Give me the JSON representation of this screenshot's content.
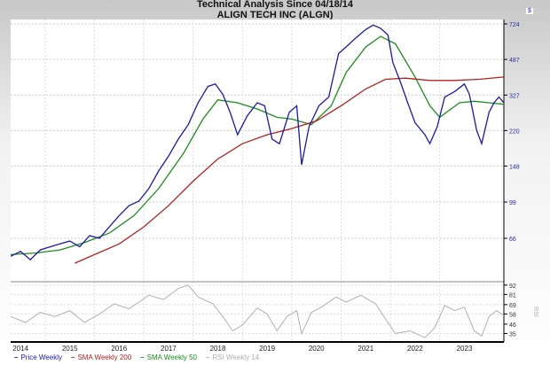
{
  "title": "Technical Analysis Since 04/18/14",
  "subtitle": "ALIGN TECH INC (ALGN)",
  "currency_label": "$",
  "chart_data": {
    "type": "line",
    "x_unit": "year",
    "xlim": [
      2014.3,
      2024.3
    ],
    "x_tick_labels": [
      "2014",
      "2015",
      "2016",
      "2017",
      "2018",
      "2019",
      "2020",
      "2021",
      "2022",
      "2023"
    ],
    "price_axis": {
      "scale": "log",
      "ticks": [
        724,
        487,
        327,
        220,
        148,
        99,
        66
      ]
    },
    "rsi_axis": {
      "label": "RSI",
      "ticks": [
        92,
        81,
        69,
        58,
        46,
        35
      ],
      "ylim": [
        25,
        96
      ]
    },
    "grid": true,
    "legend_position": "bottom",
    "series": [
      {
        "name": "Price Weekly",
        "color": "#1a1aa6",
        "panel": "price",
        "points": [
          [
            2014.3,
            54
          ],
          [
            2014.5,
            57
          ],
          [
            2014.7,
            52
          ],
          [
            2014.9,
            58
          ],
          [
            2015.1,
            60
          ],
          [
            2015.3,
            62
          ],
          [
            2015.5,
            64
          ],
          [
            2015.7,
            60
          ],
          [
            2015.9,
            68
          ],
          [
            2016.1,
            66
          ],
          [
            2016.3,
            75
          ],
          [
            2016.5,
            85
          ],
          [
            2016.7,
            95
          ],
          [
            2016.9,
            100
          ],
          [
            2017.1,
            115
          ],
          [
            2017.3,
            140
          ],
          [
            2017.5,
            165
          ],
          [
            2017.7,
            200
          ],
          [
            2017.9,
            235
          ],
          [
            2018.1,
            300
          ],
          [
            2018.3,
            360
          ],
          [
            2018.45,
            370
          ],
          [
            2018.6,
            330
          ],
          [
            2018.75,
            270
          ],
          [
            2018.9,
            210
          ],
          [
            2019.1,
            260
          ],
          [
            2019.3,
            300
          ],
          [
            2019.45,
            290
          ],
          [
            2019.6,
            200
          ],
          [
            2019.75,
            190
          ],
          [
            2019.95,
            270
          ],
          [
            2020.1,
            290
          ],
          [
            2020.2,
            150
          ],
          [
            2020.35,
            230
          ],
          [
            2020.55,
            290
          ],
          [
            2020.75,
            320
          ],
          [
            2020.95,
            520
          ],
          [
            2021.1,
            560
          ],
          [
            2021.3,
            620
          ],
          [
            2021.5,
            680
          ],
          [
            2021.65,
            715
          ],
          [
            2021.8,
            690
          ],
          [
            2021.95,
            640
          ],
          [
            2022.05,
            470
          ],
          [
            2022.2,
            380
          ],
          [
            2022.35,
            300
          ],
          [
            2022.5,
            240
          ],
          [
            2022.7,
            210
          ],
          [
            2022.8,
            190
          ],
          [
            2022.95,
            230
          ],
          [
            2023.1,
            320
          ],
          [
            2023.3,
            340
          ],
          [
            2023.5,
            370
          ],
          [
            2023.6,
            330
          ],
          [
            2023.75,
            220
          ],
          [
            2023.85,
            190
          ],
          [
            2024.0,
            270
          ],
          [
            2024.1,
            300
          ],
          [
            2024.2,
            320
          ],
          [
            2024.3,
            300
          ]
        ]
      },
      {
        "name": "SMA Weekly 200",
        "color": "#b22222",
        "panel": "price",
        "points": [
          [
            2015.6,
            50
          ],
          [
            2016.0,
            55
          ],
          [
            2016.5,
            62
          ],
          [
            2017.0,
            75
          ],
          [
            2017.5,
            95
          ],
          [
            2018.0,
            125
          ],
          [
            2018.5,
            160
          ],
          [
            2019.0,
            190
          ],
          [
            2019.5,
            210
          ],
          [
            2020.0,
            225
          ],
          [
            2020.5,
            245
          ],
          [
            2021.0,
            290
          ],
          [
            2021.5,
            350
          ],
          [
            2021.9,
            390
          ],
          [
            2022.3,
            395
          ],
          [
            2022.8,
            385
          ],
          [
            2023.3,
            385
          ],
          [
            2023.8,
            390
          ],
          [
            2024.3,
            400
          ]
        ]
      },
      {
        "name": "SMA Weekly 50",
        "color": "#1e8c1e",
        "panel": "price",
        "points": [
          [
            2014.3,
            55
          ],
          [
            2014.8,
            56
          ],
          [
            2015.3,
            58
          ],
          [
            2015.8,
            63
          ],
          [
            2016.3,
            70
          ],
          [
            2016.8,
            85
          ],
          [
            2017.3,
            115
          ],
          [
            2017.8,
            170
          ],
          [
            2018.2,
            250
          ],
          [
            2018.5,
            310
          ],
          [
            2018.9,
            300
          ],
          [
            2019.3,
            280
          ],
          [
            2019.7,
            255
          ],
          [
            2020.0,
            250
          ],
          [
            2020.4,
            235
          ],
          [
            2020.8,
            290
          ],
          [
            2021.1,
            420
          ],
          [
            2021.5,
            560
          ],
          [
            2021.8,
            630
          ],
          [
            2022.1,
            580
          ],
          [
            2022.5,
            400
          ],
          [
            2022.8,
            290
          ],
          [
            2023.0,
            255
          ],
          [
            2023.4,
            300
          ],
          [
            2023.7,
            305
          ],
          [
            2024.0,
            300
          ],
          [
            2024.3,
            295
          ]
        ]
      },
      {
        "name": "RSI Weekly 14",
        "color": "#b0b0b0",
        "panel": "rsi",
        "points": [
          [
            2014.3,
            55
          ],
          [
            2014.6,
            48
          ],
          [
            2014.9,
            60
          ],
          [
            2015.2,
            55
          ],
          [
            2015.5,
            62
          ],
          [
            2015.8,
            48
          ],
          [
            2016.1,
            58
          ],
          [
            2016.4,
            70
          ],
          [
            2016.7,
            64
          ],
          [
            2016.9,
            72
          ],
          [
            2017.1,
            80
          ],
          [
            2017.4,
            75
          ],
          [
            2017.7,
            88
          ],
          [
            2017.9,
            92
          ],
          [
            2018.1,
            78
          ],
          [
            2018.4,
            70
          ],
          [
            2018.6,
            55
          ],
          [
            2018.8,
            38
          ],
          [
            2019.0,
            45
          ],
          [
            2019.3,
            65
          ],
          [
            2019.5,
            58
          ],
          [
            2019.7,
            38
          ],
          [
            2019.9,
            55
          ],
          [
            2020.1,
            62
          ],
          [
            2020.2,
            35
          ],
          [
            2020.4,
            60
          ],
          [
            2020.6,
            66
          ],
          [
            2020.9,
            78
          ],
          [
            2021.1,
            72
          ],
          [
            2021.4,
            80
          ],
          [
            2021.7,
            70
          ],
          [
            2021.9,
            52
          ],
          [
            2022.1,
            35
          ],
          [
            2022.4,
            38
          ],
          [
            2022.7,
            30
          ],
          [
            2022.9,
            42
          ],
          [
            2023.1,
            68
          ],
          [
            2023.3,
            62
          ],
          [
            2023.5,
            66
          ],
          [
            2023.7,
            38
          ],
          [
            2023.85,
            32
          ],
          [
            2024.0,
            55
          ],
          [
            2024.15,
            62
          ],
          [
            2024.3,
            56
          ]
        ]
      }
    ]
  }
}
